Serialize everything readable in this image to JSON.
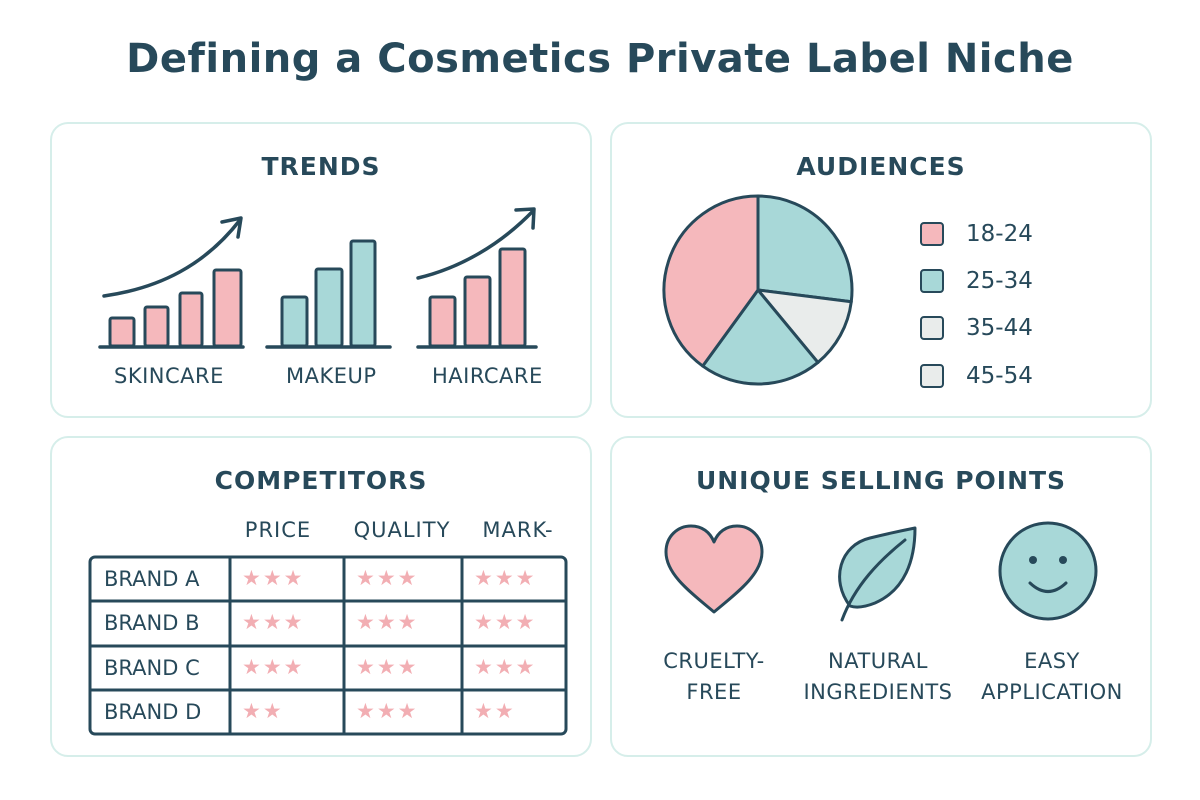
{
  "title": "Defining a Cosmetics Private Label Niche",
  "colors": {
    "dark": "#27495a",
    "pink": "#f5b8bc",
    "teal": "#a8d8d8",
    "light": "#e9eceb",
    "panel_border": "#d6eeea"
  },
  "trends": {
    "heading": "TRENDS",
    "groups": [
      {
        "label": "SKINCARE",
        "relative_values": [
          28,
          39,
          53,
          76
        ],
        "color": "pink",
        "arrow": true
      },
      {
        "label": "MAKEUP",
        "relative_values": [
          49,
          77,
          105
        ],
        "color": "teal",
        "arrow": false
      },
      {
        "label": "HAIRCARE",
        "relative_values": [
          49,
          69,
          97
        ],
        "color": "pink",
        "arrow": true
      }
    ]
  },
  "audiences": {
    "heading": "AUDIENCES",
    "legend": [
      {
        "label": "18-24",
        "color": "pink"
      },
      {
        "label": "25-34",
        "color": "teal"
      },
      {
        "label": "35-44",
        "color": "light"
      },
      {
        "label": "45-54",
        "color": "light"
      }
    ],
    "slices_clockwise_from_top": [
      {
        "color": "teal",
        "percent": 27
      },
      {
        "color": "light",
        "percent": 12
      },
      {
        "color": "teal",
        "percent": 21
      },
      {
        "color": "pink",
        "percent": 40
      }
    ]
  },
  "competitors": {
    "heading": "COMPETITORS",
    "columns": [
      "PRICE",
      "QUALITY",
      "MARK-"
    ],
    "rows": [
      {
        "brand": "BRAND A",
        "ratings": [
          3,
          3,
          3
        ]
      },
      {
        "brand": "BRAND B",
        "ratings": [
          3,
          3,
          3
        ]
      },
      {
        "brand": "BRAND C",
        "ratings": [
          3,
          3,
          3
        ]
      },
      {
        "brand": "BRAND D",
        "ratings": [
          2,
          3,
          2
        ]
      }
    ]
  },
  "usp": {
    "heading": "UNIQUE SELLING POINTS",
    "items": [
      {
        "icon": "heart-icon",
        "line1": "CRUELTY-",
        "line2": "FREE"
      },
      {
        "icon": "leaf-icon",
        "line1": "NATURAL",
        "line2": "INGREDIENTS"
      },
      {
        "icon": "smiley-icon",
        "line1": "EASY",
        "line2": "APPLICATION"
      }
    ]
  }
}
